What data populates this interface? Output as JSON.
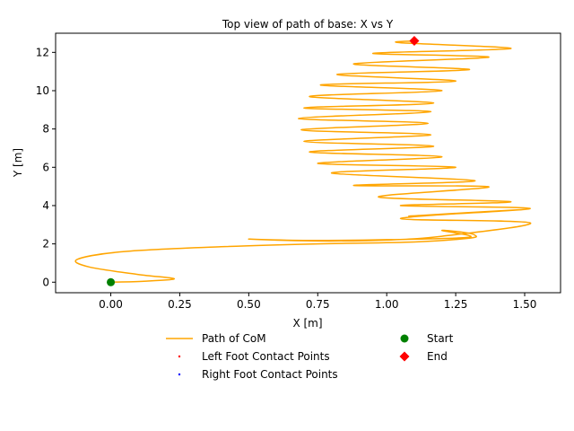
{
  "chart_data": {
    "type": "line",
    "title": "Top view of path of base: X vs Y",
    "xlabel": "X [m]",
    "ylabel": "Y [m]",
    "xlim": [
      -0.2,
      1.63
    ],
    "ylim": [
      -0.55,
      13.0
    ],
    "xticks": [
      0.0,
      0.25,
      0.5,
      0.75,
      1.0,
      1.25,
      1.5
    ],
    "xtick_labels": [
      "0.00",
      "0.25",
      "0.50",
      "0.75",
      "1.00",
      "1.25",
      "1.50"
    ],
    "yticks": [
      0,
      2,
      4,
      6,
      8,
      10,
      12
    ],
    "ytick_labels": [
      "0",
      "2",
      "4",
      "6",
      "8",
      "10",
      "12"
    ],
    "grid": false,
    "legend_placement": "below plot, two columns",
    "legend": [
      {
        "label": "Path of CoM",
        "kind": "line",
        "color": "#FFA500"
      },
      {
        "label": "Left Foot Contact Points",
        "kind": "dot",
        "color": "#FF0000"
      },
      {
        "label": "Right Foot Contact Points",
        "kind": "dot",
        "color": "#0000FF"
      },
      {
        "label": "Start",
        "kind": "circle",
        "color": "#008000"
      },
      {
        "label": "End",
        "kind": "diamond",
        "color": "#FF0000"
      }
    ],
    "series": [
      {
        "name": "Path of CoM",
        "color": "#FFA500",
        "points": [
          [
            0.0,
            0.0
          ],
          [
            0.12,
            0.05
          ],
          [
            0.23,
            0.18
          ],
          [
            0.1,
            0.4
          ],
          [
            -0.08,
            0.8
          ],
          [
            -0.12,
            1.2
          ],
          [
            0.05,
            1.6
          ],
          [
            0.4,
            1.85
          ],
          [
            0.75,
            2.0
          ],
          [
            1.1,
            2.1
          ],
          [
            1.3,
            2.3
          ],
          [
            1.32,
            2.45
          ],
          [
            1.28,
            2.6
          ],
          [
            1.2,
            2.7
          ],
          [
            1.3,
            2.35
          ],
          [
            1.0,
            2.22
          ],
          [
            0.7,
            2.18
          ],
          [
            0.5,
            2.25
          ],
          [
            0.75,
            2.15
          ],
          [
            1.0,
            2.2
          ],
          [
            1.2,
            2.4
          ],
          [
            1.52,
            3.1
          ],
          [
            1.05,
            3.32
          ],
          [
            1.5,
            3.8
          ],
          [
            1.08,
            3.45
          ],
          [
            1.52,
            3.85
          ],
          [
            1.05,
            4.0
          ],
          [
            1.45,
            4.2
          ],
          [
            0.97,
            4.45
          ],
          [
            1.37,
            4.98
          ],
          [
            0.88,
            5.05
          ],
          [
            1.32,
            5.3
          ],
          [
            0.8,
            5.7
          ],
          [
            1.25,
            6.0
          ],
          [
            0.75,
            6.2
          ],
          [
            1.2,
            6.55
          ],
          [
            0.72,
            6.8
          ],
          [
            1.17,
            7.1
          ],
          [
            0.7,
            7.35
          ],
          [
            1.16,
            7.7
          ],
          [
            0.69,
            7.95
          ],
          [
            1.15,
            8.3
          ],
          [
            0.68,
            8.55
          ],
          [
            1.16,
            8.9
          ],
          [
            0.7,
            9.1
          ],
          [
            1.17,
            9.35
          ],
          [
            0.72,
            9.7
          ],
          [
            1.2,
            10.0
          ],
          [
            0.76,
            10.3
          ],
          [
            1.25,
            10.5
          ],
          [
            0.82,
            10.85
          ],
          [
            1.3,
            11.1
          ],
          [
            0.88,
            11.4
          ],
          [
            1.37,
            11.75
          ],
          [
            0.95,
            11.95
          ],
          [
            1.45,
            12.2
          ],
          [
            1.05,
            12.5
          ],
          [
            1.1,
            12.6
          ]
        ]
      },
      {
        "name": "Start",
        "kind": "marker",
        "points": [
          [
            0.0,
            0.0
          ]
        ],
        "color": "#008000"
      },
      {
        "name": "End",
        "kind": "marker",
        "points": [
          [
            1.1,
            12.6
          ]
        ],
        "color": "#FF0000"
      }
    ]
  }
}
